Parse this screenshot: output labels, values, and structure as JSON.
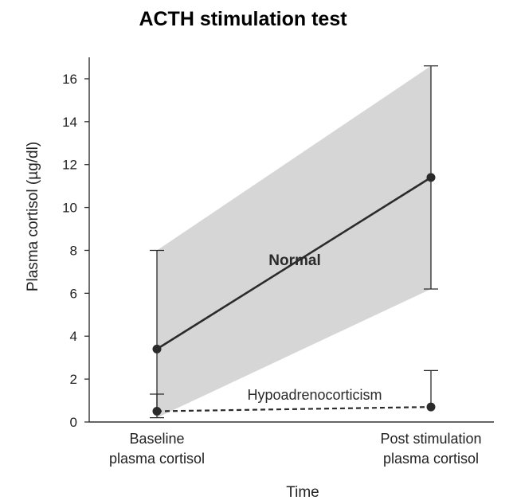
{
  "chart_data": {
    "type": "line",
    "title": "ACTH stimulation test",
    "xlabel": "Time",
    "ylabel": "Plasma cortisol (µg/dl)",
    "categories": [
      "Baseline\nplasma cortisol",
      "Post stimulation\nplasma cortisol"
    ],
    "ylim": [
      0,
      17
    ],
    "yticks": [
      0,
      2,
      4,
      6,
      8,
      10,
      12,
      14,
      16
    ],
    "grid": false,
    "legend": "none",
    "series": [
      {
        "name": "Normal",
        "values": [
          3.4,
          11.4
        ],
        "error_low": [
          0.2,
          6.2
        ],
        "error_high": [
          8.0,
          16.6
        ],
        "band": true,
        "line_style": "solid",
        "color": "#2b2b2b"
      },
      {
        "name": "Hypoadrenocorticism",
        "values": [
          0.5,
          0.7
        ],
        "error_low": [
          0.5,
          0.7
        ],
        "error_high": [
          1.3,
          2.4
        ],
        "band": false,
        "line_style": "dashed",
        "color": "#2b2b2b"
      }
    ],
    "colors": {
      "band": "#cfcfcf",
      "axis": "#333333",
      "text": "#222222"
    }
  }
}
